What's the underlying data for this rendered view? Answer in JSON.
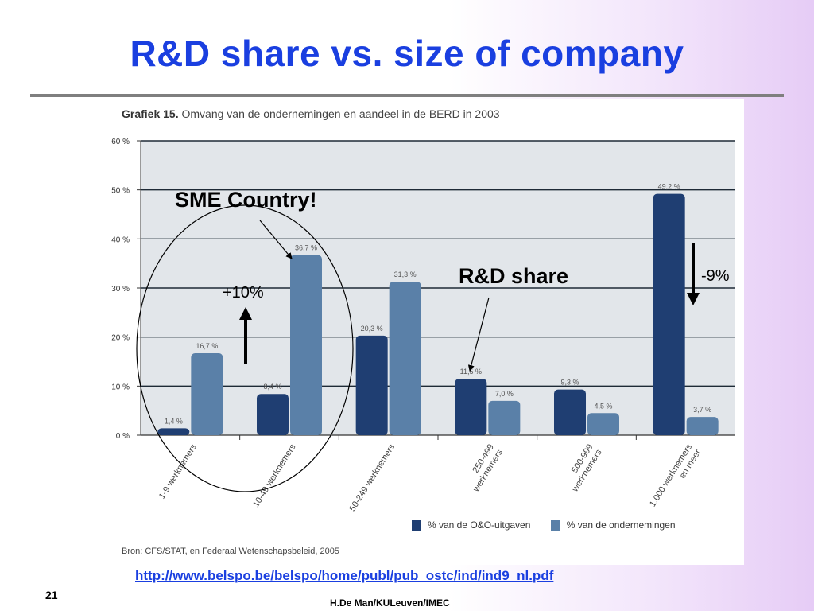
{
  "slide": {
    "title": "R&D share vs. size of company",
    "url": "http://www.belspo.be/belspo/home/publ/pub_ostc/ind/ind9_nl.pdf",
    "page_number": "21",
    "author": "H.De Man/KULeuven/IMEC"
  },
  "annotations": {
    "sme": "SME Country!",
    "rd_share": "R&D share",
    "plus": "+10%",
    "minus": "-9%"
  },
  "figure": {
    "label": "Grafiek 15.",
    "caption": "Omvang van de ondernemingen en aandeel in de BERD in 2003",
    "source": "Bron: CFS/STAT, en Federaal Wetenschapsbeleid, 2005"
  },
  "colors": {
    "series1": "#1f3e72",
    "series2": "#5a80a8",
    "title": "#1a3fe0"
  },
  "chart_data": {
    "type": "bar",
    "categories": [
      [
        "1-9 werknemers"
      ],
      [
        "10-49 werknemers"
      ],
      [
        "50-249 werknemers"
      ],
      [
        "250-499",
        "werknemers"
      ],
      [
        "500-999",
        "werknemers"
      ],
      [
        "1.000 werknemers",
        "en meer"
      ]
    ],
    "series": [
      {
        "name": "% van de O&O-uitgaven",
        "values": [
          1.4,
          8.4,
          20.3,
          11.5,
          9.3,
          49.2
        ],
        "labels": [
          "1,4 %",
          "8,4 %",
          "20,3 %",
          "11,5 %",
          "9,3 %",
          "49,2 %"
        ]
      },
      {
        "name": "% van de ondernemingen",
        "values": [
          16.7,
          36.7,
          31.3,
          7.0,
          4.5,
          3.7
        ],
        "labels": [
          "16,7 %",
          "36,7 %",
          "31,3 %",
          "7,0 %",
          "4,5 %",
          "3,7 %"
        ]
      }
    ],
    "yticks": [
      "0 %",
      "10 %",
      "20 %",
      "30 %",
      "40 %",
      "50 %",
      "60 %"
    ],
    "ylim": [
      0,
      60
    ],
    "grid": true,
    "legend": "bottom"
  }
}
